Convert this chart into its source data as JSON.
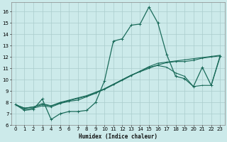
{
  "xlabel": "Humidex (Indice chaleur)",
  "bg_color": "#cceaea",
  "grid_color": "#aacccc",
  "line_color": "#1a6b5a",
  "xlim": [
    -0.5,
    23.5
  ],
  "ylim": [
    6.0,
    16.8
  ],
  "yticks": [
    6,
    7,
    8,
    9,
    10,
    11,
    12,
    13,
    14,
    15,
    16
  ],
  "xticks": [
    0,
    1,
    2,
    3,
    4,
    5,
    6,
    7,
    8,
    9,
    10,
    11,
    12,
    13,
    14,
    15,
    16,
    17,
    18,
    19,
    20,
    21,
    22,
    23
  ],
  "series": [
    [
      7.8,
      7.3,
      7.4,
      8.3,
      6.5,
      7.0,
      7.2,
      7.2,
      7.3,
      8.0,
      9.9,
      13.4,
      13.6,
      14.8,
      14.9,
      16.4,
      15.0,
      12.2,
      10.3,
      10.1,
      9.4,
      11.1,
      9.5,
      12.1
    ],
    [
      7.8,
      7.4,
      7.5,
      7.7,
      7.6,
      7.9,
      8.1,
      8.2,
      8.5,
      8.8,
      9.2,
      9.6,
      10.0,
      10.4,
      10.7,
      11.0,
      11.3,
      11.5,
      11.6,
      11.6,
      11.7,
      11.9,
      12.0,
      12.1
    ],
    [
      7.8,
      7.5,
      7.6,
      7.8,
      7.7,
      7.95,
      8.15,
      8.35,
      8.55,
      8.85,
      9.15,
      9.55,
      9.95,
      10.35,
      10.75,
      11.15,
      11.45,
      11.55,
      11.65,
      11.75,
      11.85,
      11.95,
      12.05,
      12.15
    ],
    [
      7.8,
      7.5,
      7.6,
      7.9,
      7.7,
      8.0,
      8.2,
      8.4,
      8.6,
      8.9,
      9.2,
      9.6,
      10.0,
      10.4,
      10.75,
      11.1,
      11.25,
      11.1,
      10.6,
      10.3,
      9.4,
      9.5,
      9.5,
      12.0
    ]
  ]
}
